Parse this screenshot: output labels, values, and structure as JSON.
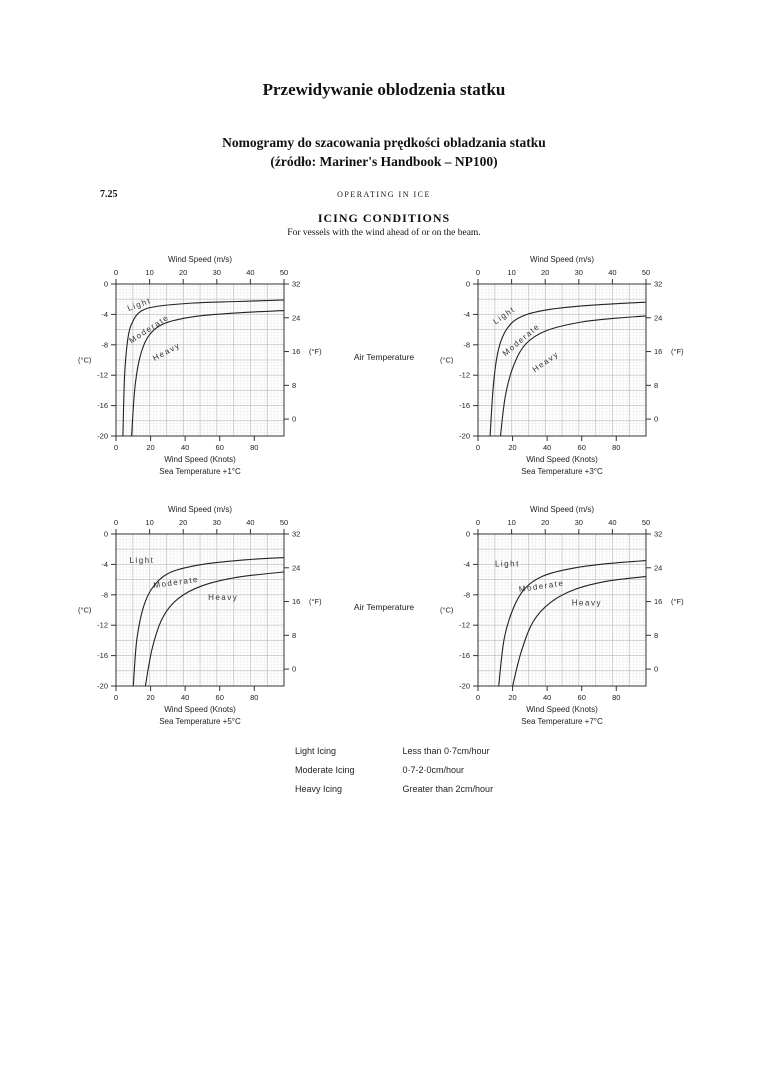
{
  "page": {
    "title": "Przewidywanie oblodzenia statku",
    "subtitle_line1": "Nomogramy do szacowania prędkości obladzania statku",
    "subtitle_line2": "(źródło: Mariner's Handbook – NP100)"
  },
  "figure": {
    "section_number": "7.25",
    "running_header": "OPERATING IN ICE",
    "title": "ICING CONDITIONS",
    "subtitle": "For vessels with the wind ahead of or on the beam.",
    "air_temperature_label": "Air Temperature",
    "axes": {
      "top_label": "Wind Speed (m/s)",
      "bottom_label": "Wind Speed (Knots)",
      "left_label": "(°C)",
      "right_label": "(°F)",
      "top_ticks": [
        0,
        10,
        20,
        30,
        40,
        50
      ],
      "bottom_ticks": [
        0,
        20,
        40,
        60,
        80
      ],
      "left_ticks": [
        0,
        -4,
        -8,
        -12,
        -16,
        -20
      ],
      "right_ticks": [
        32,
        24,
        16,
        8,
        0
      ]
    },
    "legend": [
      {
        "label": "Light Icing",
        "value": "Less than 0·7cm/hour"
      },
      {
        "label": "Moderate Icing",
        "value": "0·7-2·0cm/hour"
      },
      {
        "label": "Heavy Icing",
        "value": "Greater than 2cm/hour"
      }
    ]
  },
  "chart_data": [
    {
      "type": "line",
      "sea_temperature": "Sea Temperature +1°C",
      "x_unit": "knots",
      "x_range": [
        0,
        97
      ],
      "y_unit": "°C",
      "y_range": [
        0,
        -20
      ],
      "series": [
        {
          "name": "light-moderate-boundary",
          "points": [
            [
              4,
              -20
            ],
            [
              5,
              -12
            ],
            [
              7,
              -7
            ],
            [
              10,
              -4.8
            ],
            [
              15,
              -3.5
            ],
            [
              25,
              -2.9
            ],
            [
              45,
              -2.5
            ],
            [
              70,
              -2.3
            ],
            [
              97,
              -2.1
            ]
          ]
        },
        {
          "name": "moderate-heavy-boundary",
          "points": [
            [
              9,
              -20
            ],
            [
              11,
              -13.5
            ],
            [
              14,
              -9.5
            ],
            [
              19,
              -6.8
            ],
            [
              28,
              -5.2
            ],
            [
              45,
              -4.3
            ],
            [
              70,
              -3.8
            ],
            [
              97,
              -3.5
            ]
          ]
        }
      ],
      "region_labels": [
        {
          "text": "Light",
          "x": 14,
          "y": -3.0,
          "rot": -20
        },
        {
          "text": "Moderate",
          "x": 20,
          "y": -6.2,
          "rot": -33
        },
        {
          "text": "Heavy",
          "x": 30,
          "y": -9.2,
          "rot": -28
        }
      ]
    },
    {
      "type": "line",
      "sea_temperature": "Sea Temperature +3°C",
      "x_unit": "knots",
      "x_range": [
        0,
        97
      ],
      "y_unit": "°C",
      "y_range": [
        0,
        -20
      ],
      "series": [
        {
          "name": "light-moderate-boundary",
          "points": [
            [
              7,
              -20
            ],
            [
              9,
              -13
            ],
            [
              12,
              -8.5
            ],
            [
              17,
              -5.8
            ],
            [
              25,
              -4.3
            ],
            [
              40,
              -3.4
            ],
            [
              65,
              -2.8
            ],
            [
              97,
              -2.4
            ]
          ]
        },
        {
          "name": "moderate-heavy-boundary",
          "points": [
            [
              13,
              -20
            ],
            [
              16,
              -14.5
            ],
            [
              21,
              -10.5
            ],
            [
              28,
              -7.8
            ],
            [
              40,
              -6.1
            ],
            [
              60,
              -5.0
            ],
            [
              80,
              -4.5
            ],
            [
              97,
              -4.2
            ]
          ]
        }
      ],
      "region_labels": [
        {
          "text": "Light",
          "x": 16,
          "y": -4.4,
          "rot": -35
        },
        {
          "text": "Moderate",
          "x": 26,
          "y": -7.6,
          "rot": -40
        },
        {
          "text": "Heavy",
          "x": 40,
          "y": -10.5,
          "rot": -35
        }
      ]
    },
    {
      "type": "line",
      "sea_temperature": "Sea Temperature +5°C",
      "x_unit": "knots",
      "x_range": [
        0,
        97
      ],
      "y_unit": "°C",
      "y_range": [
        0,
        -20
      ],
      "series": [
        {
          "name": "light-moderate-boundary",
          "points": [
            [
              10,
              -20
            ],
            [
              12,
              -14
            ],
            [
              16,
              -9.5
            ],
            [
              22,
              -6.8
            ],
            [
              32,
              -5.0
            ],
            [
              50,
              -4.0
            ],
            [
              75,
              -3.4
            ],
            [
              97,
              -3.1
            ]
          ]
        },
        {
          "name": "moderate-heavy-boundary",
          "points": [
            [
              17,
              -20
            ],
            [
              21,
              -15
            ],
            [
              27,
              -11
            ],
            [
              36,
              -8.5
            ],
            [
              50,
              -6.8
            ],
            [
              70,
              -5.7
            ],
            [
              97,
              -5.0
            ]
          ]
        }
      ],
      "region_labels": [
        {
          "text": "Light",
          "x": 15,
          "y": -3.8,
          "rot": 0
        },
        {
          "text": "Moderate",
          "x": 35,
          "y": -6.7,
          "rot": -8
        },
        {
          "text": "Heavy",
          "x": 62,
          "y": -8.7,
          "rot": 0
        }
      ]
    },
    {
      "type": "line",
      "sea_temperature": "Sea Temperature +7°C",
      "x_unit": "knots",
      "x_range": [
        0,
        97
      ],
      "y_unit": "°C",
      "y_range": [
        0,
        -20
      ],
      "series": [
        {
          "name": "light-moderate-boundary",
          "points": [
            [
              12,
              -20
            ],
            [
              15,
              -14
            ],
            [
              20,
              -10
            ],
            [
              27,
              -7.2
            ],
            [
              38,
              -5.5
            ],
            [
              55,
              -4.5
            ],
            [
              75,
              -3.9
            ],
            [
              97,
              -3.5
            ]
          ]
        },
        {
          "name": "moderate-heavy-boundary",
          "points": [
            [
              20,
              -20
            ],
            [
              25,
              -15.5
            ],
            [
              32,
              -11.5
            ],
            [
              42,
              -9.0
            ],
            [
              56,
              -7.3
            ],
            [
              75,
              -6.2
            ],
            [
              97,
              -5.6
            ]
          ]
        }
      ],
      "region_labels": [
        {
          "text": "Light",
          "x": 17,
          "y": -4.3,
          "rot": 0
        },
        {
          "text": "Moderate",
          "x": 37,
          "y": -7.2,
          "rot": -8
        },
        {
          "text": "Heavy",
          "x": 63,
          "y": -9.4,
          "rot": 0
        }
      ]
    }
  ]
}
